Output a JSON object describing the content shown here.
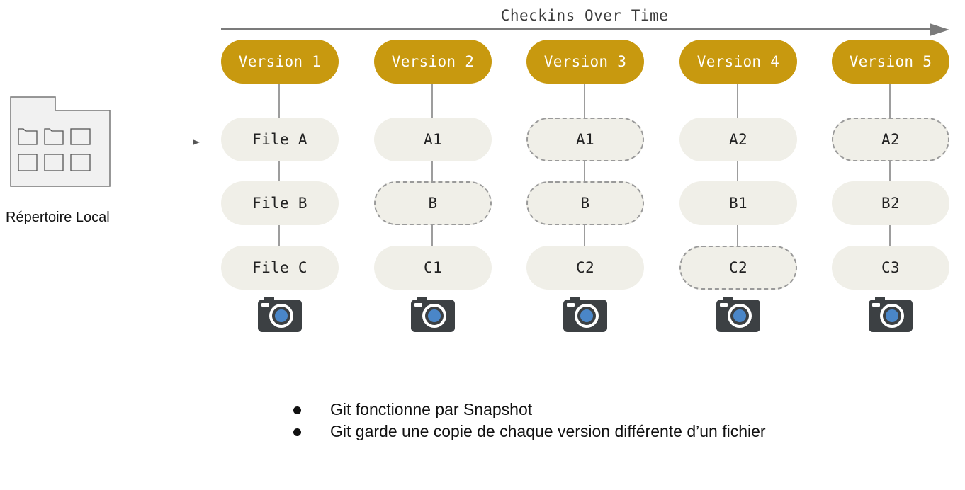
{
  "timeline": {
    "title": "Checkins Over Time"
  },
  "local": {
    "label": "Répertoire Local"
  },
  "columns": [
    {
      "version": "Version 1",
      "files": [
        {
          "label": "File A",
          "changed": true
        },
        {
          "label": "File B",
          "changed": true
        },
        {
          "label": "File C",
          "changed": true
        }
      ]
    },
    {
      "version": "Version 2",
      "files": [
        {
          "label": "A1",
          "changed": true
        },
        {
          "label": "B",
          "changed": false
        },
        {
          "label": "C1",
          "changed": true
        }
      ]
    },
    {
      "version": "Version 3",
      "files": [
        {
          "label": "A1",
          "changed": false
        },
        {
          "label": "B",
          "changed": false
        },
        {
          "label": "C2",
          "changed": true
        }
      ]
    },
    {
      "version": "Version 4",
      "files": [
        {
          "label": "A2",
          "changed": true
        },
        {
          "label": "B1",
          "changed": true
        },
        {
          "label": "C2",
          "changed": false
        }
      ]
    },
    {
      "version": "Version 5",
      "files": [
        {
          "label": "A2",
          "changed": false
        },
        {
          "label": "B2",
          "changed": true
        },
        {
          "label": "C3",
          "changed": true
        }
      ]
    }
  ],
  "bullets": [
    "Git fonctionne par Snapshot",
    "Git garde une copie de chaque version différente d’un fichier"
  ],
  "colors": {
    "version_fill": "#c8990f",
    "file_fill": "#f0efe8",
    "dashed_border": "#9a9a9a",
    "camera_body": "#3c4043",
    "camera_lens": "#4a86c8"
  },
  "icons": {
    "snapshot": "camera-icon",
    "local": "folder-icon"
  }
}
